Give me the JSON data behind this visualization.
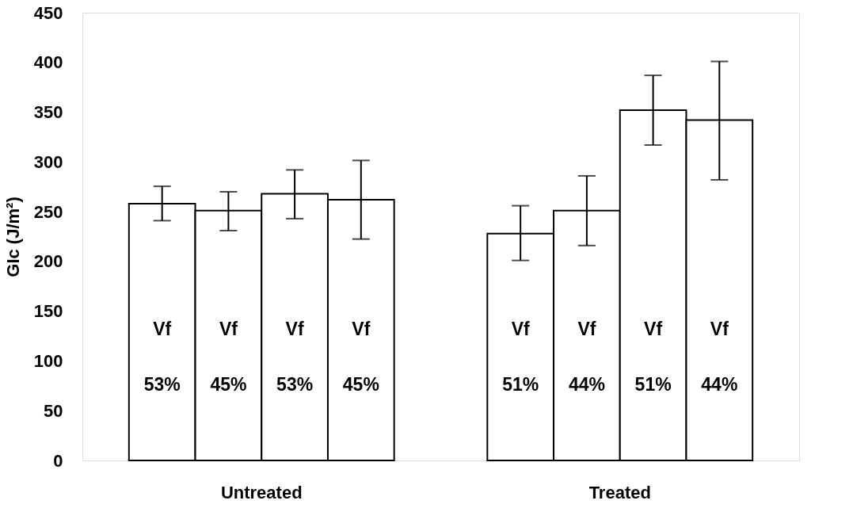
{
  "chart_data": {
    "type": "bar",
    "ylabel": "GIc (J/m²)",
    "categories": [
      "Untreated",
      "Treated"
    ],
    "ylim": [
      0,
      450
    ],
    "yticks": [
      0,
      50,
      100,
      150,
      200,
      250,
      300,
      350,
      400,
      450
    ],
    "grid": false,
    "series": [
      {
        "color": "#ffffff",
        "values": [
          258,
          228
        ],
        "errors": [
          [
            241,
            275.5
          ],
          [
            201,
            256
          ]
        ]
      },
      {
        "color": "#ffffff",
        "values": [
          251,
          251
        ],
        "errors": [
          [
            231,
            270
          ],
          [
            216,
            286
          ]
        ]
      },
      {
        "color": "#ffffff",
        "values": [
          268,
          352
        ],
        "errors": [
          [
            243,
            292
          ],
          [
            317,
            387
          ]
        ]
      },
      {
        "color": "#ffffff",
        "values": [
          262,
          342
        ],
        "errors": [
          [
            222.5,
            301.5
          ],
          [
            282,
            401
          ]
        ]
      }
    ],
    "annotations": [
      "Vf\n53%",
      "Vf\n45%",
      "Vf\n53%",
      "Vf\n45%",
      "Vf\n51%",
      "Vf\n44%",
      "Vf\n51%",
      "Vf\n44%"
    ]
  }
}
